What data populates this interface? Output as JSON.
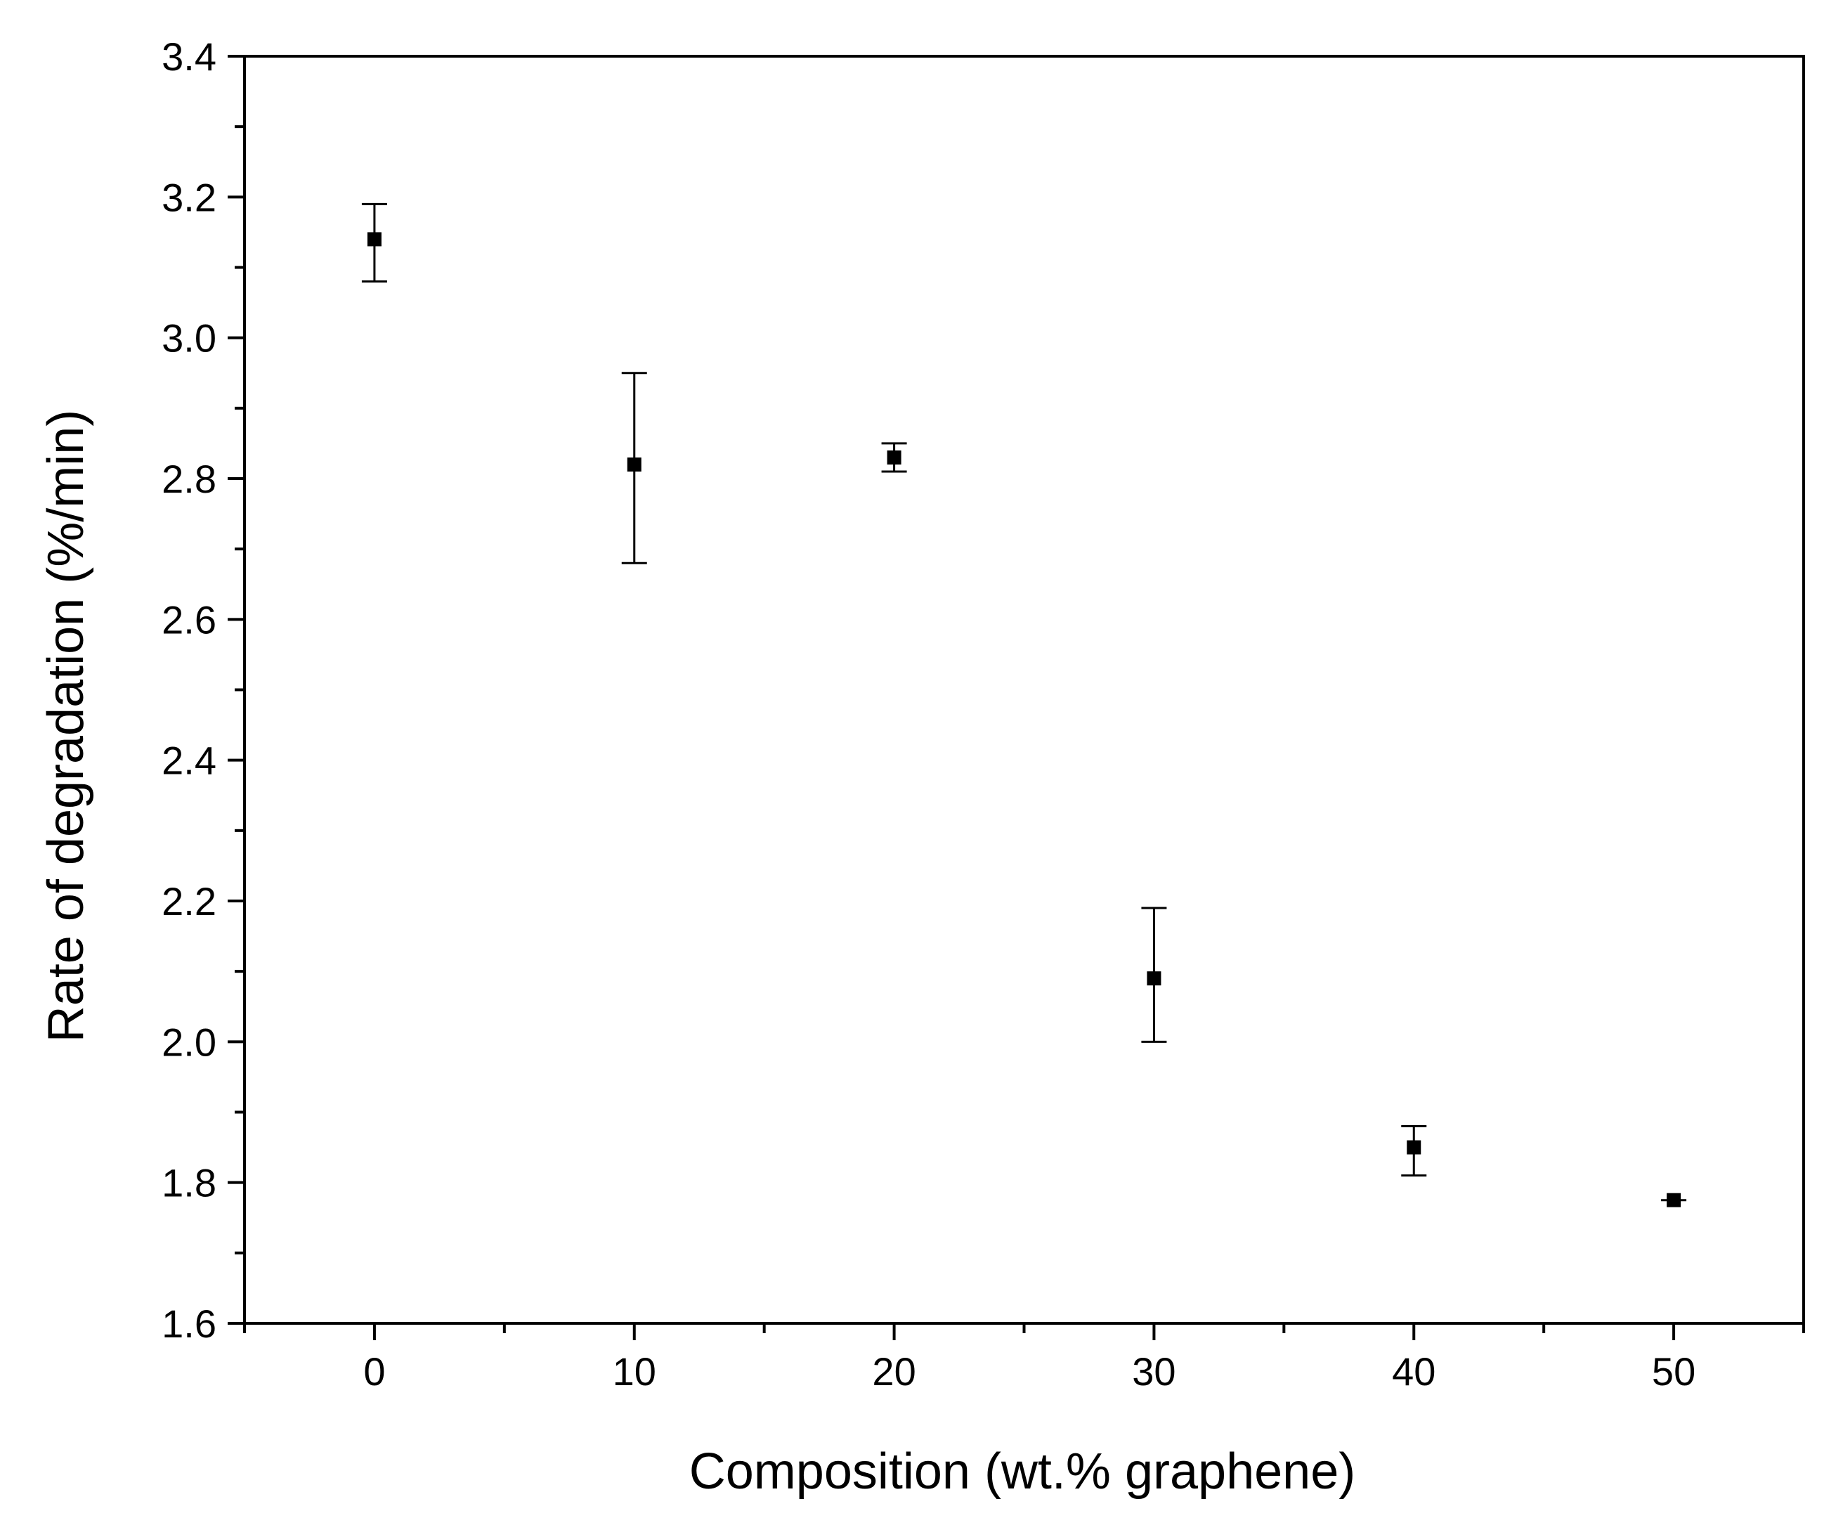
{
  "chart_data": {
    "type": "scatter",
    "title": "",
    "xlabel": "Composition (wt.% graphene)",
    "ylabel": "Rate of degradation (%/min)",
    "xlim": [
      -5,
      55
    ],
    "ylim": [
      1.6,
      3.4
    ],
    "x_ticks": [
      0,
      10,
      20,
      30,
      40,
      50
    ],
    "x_tick_labels": [
      "0",
      "10",
      "20",
      "30",
      "40",
      "50"
    ],
    "x_minor_ticks": [
      -5,
      5,
      15,
      25,
      35,
      45,
      55
    ],
    "y_ticks": [
      1.6,
      1.8,
      2.0,
      2.2,
      2.4,
      2.6,
      2.8,
      3.0,
      3.2,
      3.4
    ],
    "y_tick_labels": [
      "1.6",
      "1.8",
      "2.0",
      "2.2",
      "2.4",
      "2.6",
      "2.8",
      "3.0",
      "3.2",
      "3.4"
    ],
    "y_minor_ticks": [
      1.7,
      1.9,
      2.1,
      2.3,
      2.5,
      2.7,
      2.9,
      3.1,
      3.3
    ],
    "grid": false,
    "marker": "square",
    "series": [
      {
        "x": [
          0,
          10,
          20,
          30,
          40,
          50
        ],
        "y": [
          3.14,
          2.82,
          2.83,
          2.09,
          1.85,
          1.775
        ],
        "y_err_upper": [
          3.19,
          2.95,
          2.85,
          2.19,
          1.88,
          1.775
        ],
        "y_err_lower": [
          3.08,
          2.68,
          2.81,
          2.0,
          1.81,
          1.775
        ]
      }
    ],
    "colors": {
      "axis": "#000000",
      "marker": "#000000",
      "background": "#ffffff"
    }
  }
}
